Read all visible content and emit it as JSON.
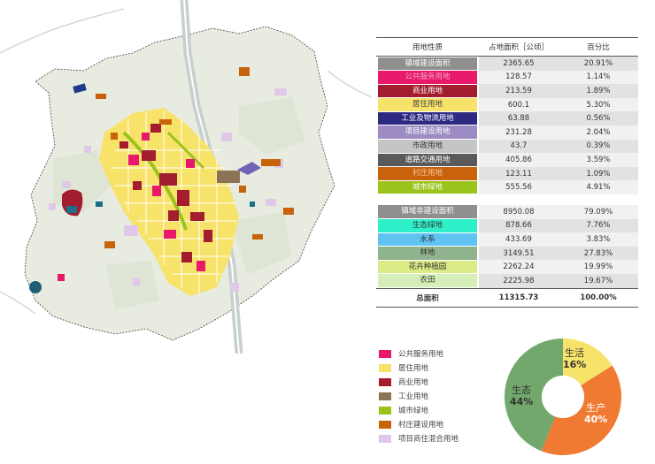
{
  "table": {
    "headers": [
      "用地性质",
      "占地面积［公顷］",
      "百分比"
    ],
    "groups": [
      {
        "rows": [
          {
            "name": "镇域建设面积",
            "area": "2365.65",
            "pct": "20.91%",
            "color": "#8f8f8f",
            "text_color": "#ffffff",
            "group_header": true
          },
          {
            "name": "公共服务用地",
            "area": "128.57",
            "pct": "1.14%",
            "color": "#e8196b",
            "text_color": "#f2a6c4"
          },
          {
            "name": "商业用地",
            "area": "213.59",
            "pct": "1.89%",
            "color": "#a31d2f",
            "text_color": "#ffffff"
          },
          {
            "name": "居住用地",
            "area": "600.1",
            "pct": "5.30%",
            "color": "#f8e36a",
            "text_color": "#444444"
          },
          {
            "name": "工业及物流用地",
            "area": "63.88",
            "pct": "0.56%",
            "color": "#2e2a82",
            "text_color": "#ffffff"
          },
          {
            "name": "项目建设用地",
            "area": "231.28",
            "pct": "2.04%",
            "color": "#9d8cc4",
            "text_color": "#ffffff"
          },
          {
            "name": "市政用地",
            "area": "43.7",
            "pct": "0.39%",
            "color": "#c5c5c5",
            "text_color": "#333333"
          },
          {
            "name": "道路交通用地",
            "area": "405.86",
            "pct": "3.59%",
            "color": "#5a5a5a",
            "text_color": "#ffffff"
          },
          {
            "name": "村庄用地",
            "area": "123.11",
            "pct": "1.09%",
            "color": "#c8630c",
            "text_color": "#f4c59a"
          },
          {
            "name": "城市绿地",
            "area": "555.56",
            "pct": "4.91%",
            "color": "#9ac31b",
            "text_color": "#ffffff"
          }
        ]
      },
      {
        "rows": [
          {
            "name": "镇域非建设面积",
            "area": "8950.08",
            "pct": "79.09%",
            "color": "#8f8f8f",
            "text_color": "#ffffff",
            "group_header": true
          },
          {
            "name": "生态绿地",
            "area": "878.66",
            "pct": "7.76%",
            "color": "#2ef0c8",
            "text_color": "#333333"
          },
          {
            "name": "水系",
            "area": "433.69",
            "pct": "3.83%",
            "color": "#5fc4f2",
            "text_color": "#333333"
          },
          {
            "name": "林地",
            "area": "3149.51",
            "pct": "27.83%",
            "color": "#8fb38d",
            "text_color": "#333333"
          },
          {
            "name": "花卉种植园",
            "area": "2262.24",
            "pct": "19.99%",
            "color": "#d9ec86",
            "text_color": "#333333"
          },
          {
            "name": "农田",
            "area": "2225.98",
            "pct": "19.67%",
            "color": "#d6efb8",
            "text_color": "#333333"
          }
        ]
      }
    ],
    "total": {
      "name": "总面积",
      "area": "11315.73",
      "pct": "100.00%"
    }
  },
  "legend": [
    {
      "label": "公共服务用地",
      "color": "#e8196b"
    },
    {
      "label": "居住用地",
      "color": "#f8e36a"
    },
    {
      "label": "商业用地",
      "color": "#a31d2f"
    },
    {
      "label": "工业用地",
      "color": "#8b7355"
    },
    {
      "label": "城市绿地",
      "color": "#9ac31b"
    },
    {
      "label": "村庄建设用地",
      "color": "#c8630c"
    },
    {
      "label": "项目商住混合用地",
      "color": "#e0c8ea"
    }
  ],
  "pie": {
    "slices": [
      {
        "name": "生活",
        "pct": "16%",
        "value": 16,
        "color": "#f8e36a"
      },
      {
        "name": "生产",
        "pct": "40%",
        "value": 40,
        "color": "#f17a32"
      },
      {
        "name": "生态",
        "pct": "44%",
        "value": 44,
        "color": "#72a86c"
      }
    ]
  },
  "map_colors": {
    "base": "#e7ebe0",
    "base_dark": "#dfe5d4",
    "river": "#c6d0cc",
    "road": "#ffffff"
  }
}
